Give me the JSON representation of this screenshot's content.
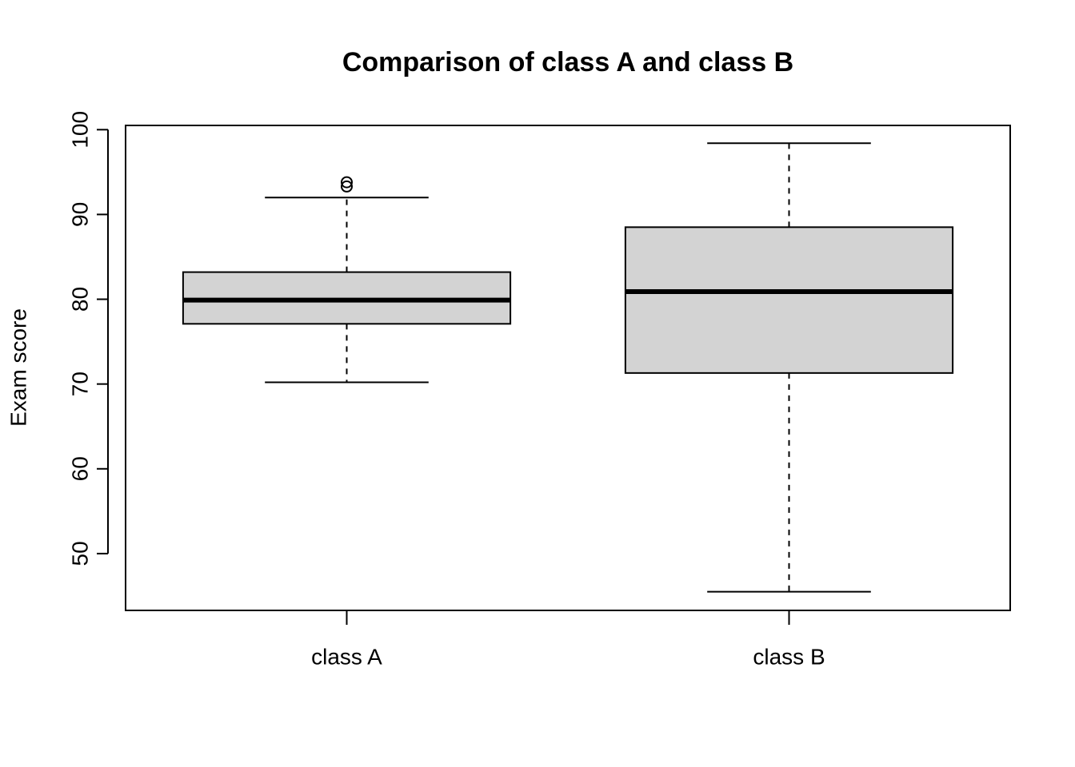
{
  "chart_data": {
    "type": "boxplot",
    "title": "Comparison of class A and class B",
    "y_label": "Exam score",
    "categories": [
      "class A",
      "class B"
    ],
    "whisker_low": [
      70.2,
      45.5
    ],
    "q1": [
      77.1,
      71.3
    ],
    "median": [
      79.9,
      80.9
    ],
    "q3": [
      83.2,
      88.5
    ],
    "whisker_high": [
      92.0,
      98.4
    ],
    "outliers": [
      [
        93.3,
        93.8
      ],
      []
    ],
    "color": "#d3d3d3",
    "ylim": [
      43.3,
      100.5
    ],
    "yticks": [
      50,
      60,
      70,
      80,
      90,
      100
    ]
  }
}
